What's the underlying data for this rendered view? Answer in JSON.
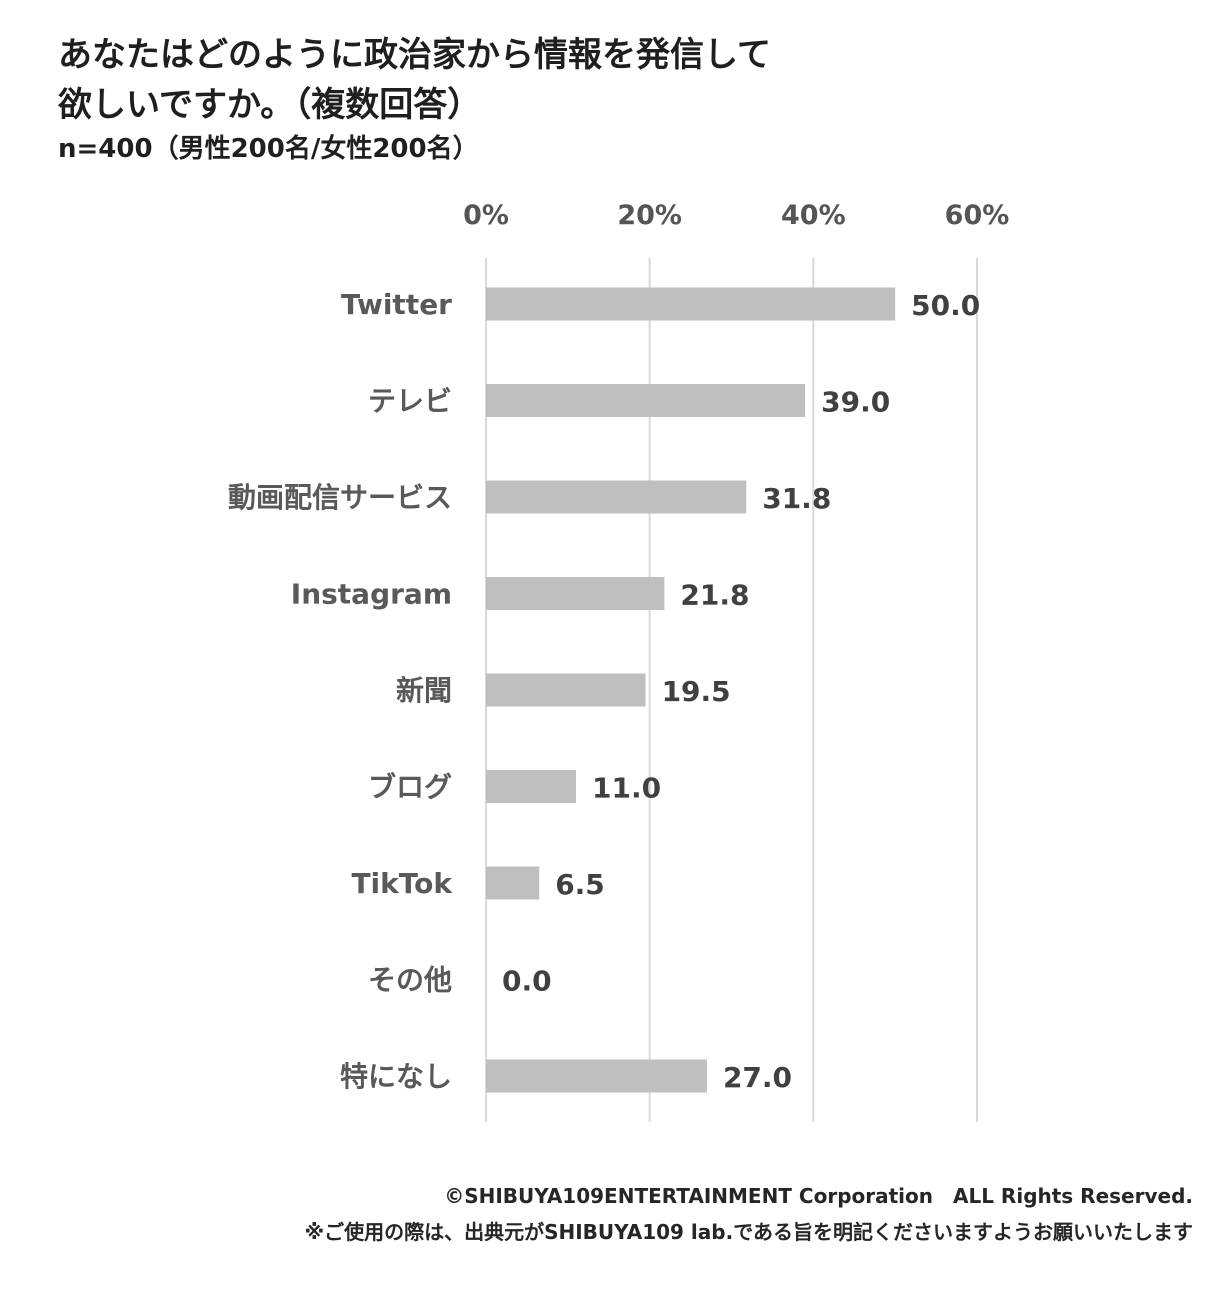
{
  "title_lines": [
    "あなたはどのように政治家から情報を発信して",
    "欲しいですか。（複数回答）"
  ],
  "subtitle": "n=400（男性200名/女性200名）",
  "chart_data": {
    "type": "bar",
    "orientation": "horizontal",
    "title": "あなたはどのように政治家から情報を発信して欲しいですか。（複数回答）",
    "categories": [
      "Twitter",
      "テレビ",
      "動画配信サービス",
      "Instagram",
      "新聞",
      "ブログ",
      "TikTok",
      "その他",
      "特になし"
    ],
    "values": [
      50.0,
      39.0,
      31.8,
      21.8,
      19.5,
      11.0,
      6.5,
      0.0,
      27.0
    ],
    "value_labels": [
      "50.0",
      "39.0",
      "31.8",
      "21.8",
      "19.5",
      "11.0",
      "6.5",
      "0.0",
      "27.0"
    ],
    "xlim": [
      0,
      60
    ],
    "xticks": [
      0,
      20,
      40,
      60
    ],
    "xtick_labels": [
      "0%",
      "20%",
      "40%",
      "60%"
    ],
    "x_axis_position": "top",
    "grid": true,
    "legend": "none",
    "bar_color": "#bfbfbf",
    "grid_color": "#d9d9d9"
  },
  "footer": {
    "copyright": "©SHIBUYA109ENTERTAINMENT Corporation　ALL Rights Reserved.",
    "note": "※ご使用の際は、出典元がSHIBUYA109 lab.である旨を明記くださいますようお願いいたします"
  }
}
